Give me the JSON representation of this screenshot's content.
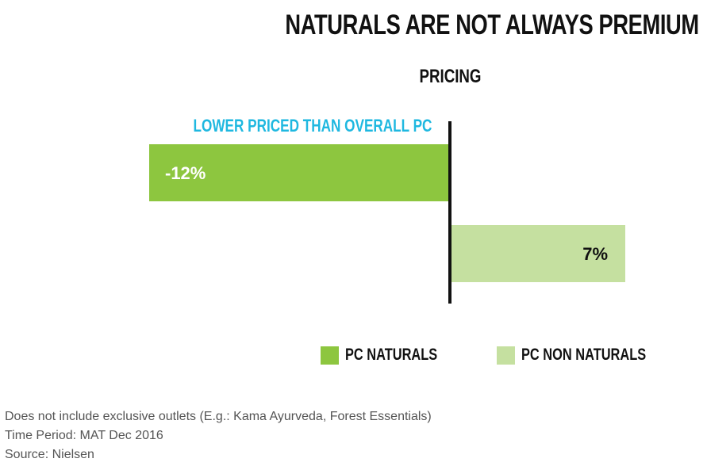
{
  "chart_data": {
    "type": "bar",
    "orientation": "horizontal",
    "title": "NATURALS ARE NOT ALWAYS PREMIUM",
    "subtitle": "PRICING",
    "annotation": "LOWER PRICED THAN OVERALL PC",
    "series": [
      {
        "name": "PC NATURALS",
        "value": -12,
        "label": "-12%",
        "color": "#8dc63f"
      },
      {
        "name": "PC NON NATURALS",
        "value": 7,
        "label": "7%",
        "color": "#c5e0a0"
      }
    ],
    "xlim": [
      -12,
      7
    ],
    "grid": false,
    "legend_position": "bottom"
  },
  "colors": {
    "annotation": "#1fb8e0",
    "axis": "#111111"
  },
  "footnotes": [
    "Does not include exclusive outlets (E.g.: Kama Ayurveda, Forest Essentials)",
    "Time Period: MAT Dec 2016",
    "Source: Nielsen"
  ]
}
